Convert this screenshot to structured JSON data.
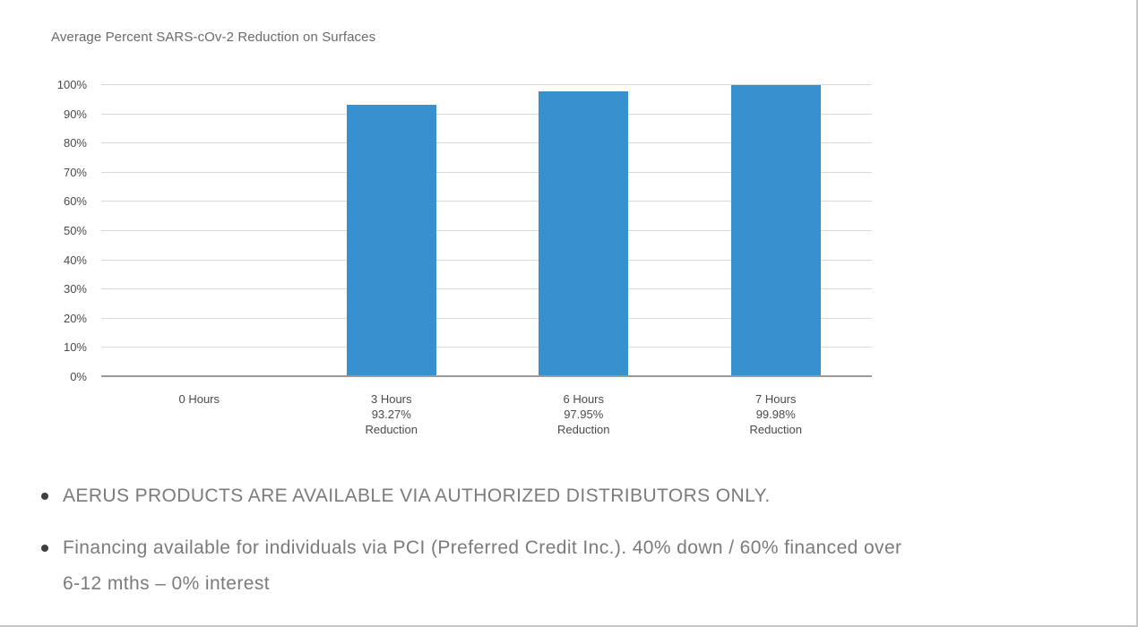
{
  "chart_data": {
    "type": "bar",
    "title": "Average Percent SARS-cOv-2 Reduction on Surfaces",
    "categories": [
      "0 Hours",
      "3 Hours",
      "6 Hours",
      "7 Hours"
    ],
    "category_labels": [
      [
        "0 Hours"
      ],
      [
        "3 Hours",
        "93.27%",
        "Reduction"
      ],
      [
        "6 Hours",
        "97.95%",
        "Reduction"
      ],
      [
        "7 Hours",
        "99.98%",
        "Reduction"
      ]
    ],
    "values": [
      0,
      93.27,
      97.95,
      99.98
    ],
    "unit": "%",
    "xlabel": "",
    "ylabel": "",
    "ylim": [
      0,
      100
    ],
    "ytick_step": 10,
    "ytick_labels": [
      "0%",
      "10%",
      "20%",
      "30%",
      "40%",
      "50%",
      "60%",
      "70%",
      "80%",
      "90%",
      "100%"
    ],
    "grid": true,
    "legend": "none",
    "bar_color": "#3791CE"
  },
  "bullets": [
    {
      "lines": [
        "AERUS PRODUCTS ARE AVAILABLE VIA AUTHORIZED DISTRIBUTORS ONLY."
      ]
    },
    {
      "lines": [
        "Financing available for individuals via PCI (Preferred Credit Inc.). 40% down / 60% financed over",
        "6-12 mths – 0% interest"
      ]
    }
  ],
  "colors": {
    "bar": "#3791CE",
    "gridline": "#d9d9d9",
    "axis_line": "#9a9a9a",
    "title_text": "#6a6a6a",
    "tick_text": "#4a4a4a",
    "bullet_text": "#7b7b7b",
    "bullet_marker": "#3f3f3f",
    "page_border": "#c8c8c8"
  }
}
